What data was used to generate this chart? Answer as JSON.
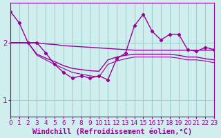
{
  "background_color": "#d0eeee",
  "grid_color": "#a0cece",
  "line_color": "#990099",
  "xlim": [
    0,
    23
  ],
  "ylim": [
    0.7,
    2.7
  ],
  "yticks": [
    1,
    2
  ],
  "xticks": [
    0,
    1,
    2,
    3,
    4,
    5,
    6,
    7,
    8,
    9,
    10,
    11,
    12,
    13,
    14,
    15,
    16,
    17,
    18,
    19,
    20,
    21,
    22,
    23
  ],
  "xlabel": "Windchill (Refroidissement éolien,°C)",
  "xlabel_fontsize": 7.5,
  "tick_fontsize": 6.5,
  "ytick_fontsize": 7.5,
  "series": [
    {
      "x": [
        0,
        1,
        2,
        3,
        4,
        5,
        6,
        7,
        8,
        9,
        10,
        11,
        12,
        13,
        14,
        15,
        16,
        17,
        18,
        19,
        20,
        21,
        22,
        23
      ],
      "y": [
        2.55,
        2.35,
        2.0,
        2.0,
        1.82,
        1.62,
        1.48,
        1.38,
        1.42,
        1.38,
        1.42,
        1.35,
        1.72,
        1.82,
        2.3,
        2.5,
        2.2,
        2.05,
        2.15,
        2.15,
        1.88,
        1.85,
        1.92,
        1.88
      ],
      "marker": "D",
      "markersize": 2.2,
      "linewidth": 1.0,
      "zorder": 5
    },
    {
      "x": [
        0,
        1,
        2,
        3,
        4,
        5,
        6,
        7,
        8,
        9,
        10,
        11,
        12,
        13,
        14,
        15,
        16,
        17,
        18,
        19,
        20,
        21,
        22,
        23
      ],
      "y": [
        2.0,
        2.0,
        2.0,
        2.0,
        1.98,
        1.97,
        1.95,
        1.94,
        1.93,
        1.92,
        1.91,
        1.9,
        1.89,
        1.88,
        1.87,
        1.87,
        1.87,
        1.87,
        1.87,
        1.87,
        1.87,
        1.87,
        1.87,
        1.87
      ],
      "marker": null,
      "markersize": 0,
      "linewidth": 1.0,
      "zorder": 3
    },
    {
      "x": [
        0,
        1,
        2,
        3,
        4,
        5,
        6,
        7,
        8,
        9,
        10,
        11,
        12,
        13,
        14,
        15,
        16,
        17,
        18,
        19,
        20,
        21,
        22,
        23
      ],
      "y": [
        2.0,
        2.0,
        2.0,
        1.8,
        1.73,
        1.67,
        1.6,
        1.55,
        1.53,
        1.51,
        1.5,
        1.7,
        1.75,
        1.78,
        1.8,
        1.8,
        1.8,
        1.8,
        1.8,
        1.78,
        1.75,
        1.75,
        1.72,
        1.7
      ],
      "marker": null,
      "markersize": 0,
      "linewidth": 1.0,
      "zorder": 3
    },
    {
      "x": [
        0,
        1,
        2,
        3,
        4,
        5,
        6,
        7,
        8,
        9,
        10,
        11,
        12,
        13,
        14,
        15,
        16,
        17,
        18,
        19,
        20,
        21,
        22,
        23
      ],
      "y": [
        2.0,
        2.0,
        2.0,
        1.78,
        1.7,
        1.62,
        1.55,
        1.48,
        1.45,
        1.42,
        1.4,
        1.62,
        1.68,
        1.72,
        1.75,
        1.75,
        1.75,
        1.75,
        1.75,
        1.73,
        1.7,
        1.7,
        1.68,
        1.65
      ],
      "marker": null,
      "markersize": 0,
      "linewidth": 0.8,
      "zorder": 3
    }
  ]
}
